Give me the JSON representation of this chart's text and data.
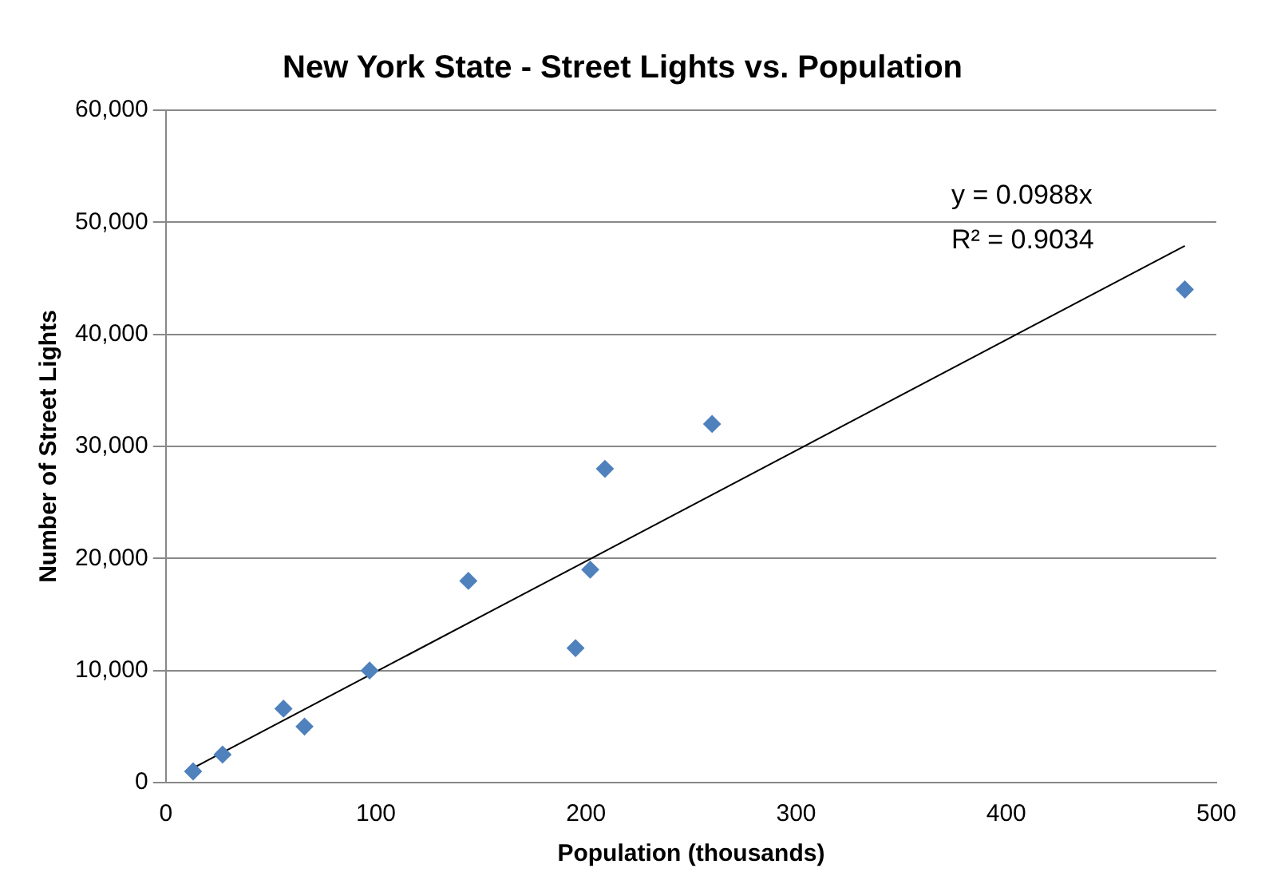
{
  "chart_data": {
    "type": "scatter",
    "title": "New York State - Street Lights vs. Population",
    "xlabel": "Population (thousands)",
    "ylabel": "Number of Street Lights",
    "series": [
      {
        "color": "#4f81bd",
        "marker": "diamond",
        "x": [
          13,
          27,
          56,
          66,
          97,
          144,
          195,
          202,
          209,
          260,
          485
        ],
        "values": [
          1000,
          2500,
          6600,
          5000,
          10000,
          18000,
          12000,
          19000,
          28000,
          32000,
          44000
        ]
      },
      {
        "type": "line",
        "color": "#000000",
        "marker": "none",
        "x": [
          13,
          485
        ],
        "values": [
          1300,
          47900
        ]
      }
    ],
    "xlim": [
      0,
      500
    ],
    "xticks": [
      0,
      100,
      200,
      300,
      400,
      500
    ],
    "ylim": [
      0,
      60000
    ],
    "yticks": [
      0,
      {
        "value": 10000,
        "label": "10,000"
      },
      {
        "value": 20000,
        "label": "20,000"
      },
      {
        "value": 30000,
        "label": "30,000"
      },
      {
        "value": 40000,
        "label": "40,000"
      },
      {
        "value": 50000,
        "label": "50,000"
      },
      {
        "value": 60000,
        "label": "60,000"
      }
    ],
    "grid": "y",
    "legend": false,
    "annotations": [
      "y = 0.0988x",
      "R² = 0.9034"
    ]
  }
}
